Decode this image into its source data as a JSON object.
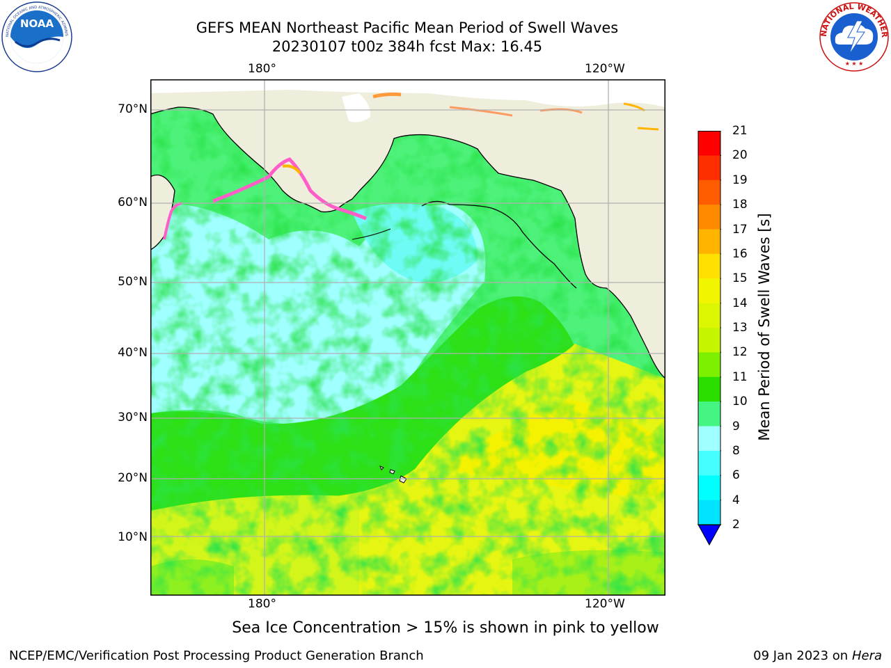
{
  "header": {
    "title_line1": "GEFS MEAN Northeast Pacific Mean Period of Swell Waves",
    "title_line2": "20230107 t00z 384h fcst   Max: 16.45"
  },
  "logos": {
    "left": {
      "icon": "noaa-logo",
      "text": "NOAA",
      "ring_text": "NATIONAL OCEANIC AND ATMOSPHERIC ADMINISTRATION · U.S. DEPARTMENT OF COMMERCE"
    },
    "right": {
      "icon": "nws-logo",
      "ring_text": "NATIONAL WEATHER SERVICE"
    }
  },
  "map": {
    "lon_top_labels": [
      "180°",
      "120°W"
    ],
    "lon_bottom_labels": [
      "180°",
      "120°W"
    ],
    "lat_labels": [
      "70°N",
      "60°N",
      "50°N",
      "40°N",
      "30°N",
      "20°N",
      "10°N"
    ],
    "colors": {
      "land": "#efeedc",
      "grid": "#b0b0b0",
      "coast": "#000000"
    }
  },
  "colorbar": {
    "label": "Mean Period of Swell Waves [s]",
    "ticks": [
      "21",
      "20",
      "19",
      "18",
      "17",
      "16",
      "15",
      "14",
      "13",
      "12",
      "11",
      "10",
      "9",
      "8",
      "6",
      "4",
      "2"
    ],
    "colors": [
      "#ff0000",
      "#ff2e00",
      "#ff5c00",
      "#ff8a00",
      "#ffb400",
      "#ffe000",
      "#f2f500",
      "#dcf500",
      "#c6f500",
      "#7cf000",
      "#2adf00",
      "#45f584",
      "#a0ffff",
      "#45ffff",
      "#00ffff",
      "#00e4ff",
      "#0078ff"
    ],
    "extend_color": "#0000ff"
  },
  "caption": "Sea Ice Concentration > 15% is shown in pink to yellow",
  "footer": {
    "left": "NCEP/EMC/Verification Post Processing Product Generation Branch",
    "right_date": "09 Jan 2023 on ",
    "right_machine": "Hera"
  }
}
